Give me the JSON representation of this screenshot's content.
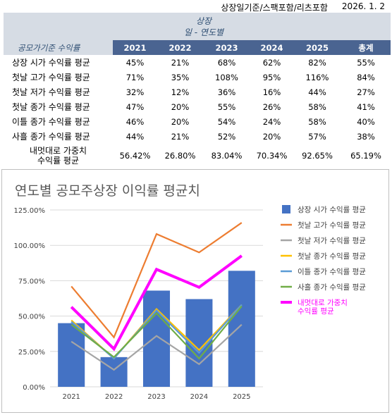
{
  "header": {
    "note": "상장일기준/스팩포함/리츠포함",
    "date": "2026. 1. 2"
  },
  "table": {
    "basis_line1": "상장",
    "basis_line2": "일 - 연도별",
    "row_header": "공모가기준 수익률",
    "columns": [
      "2021",
      "2022",
      "2023",
      "2024",
      "2025",
      "총계"
    ],
    "rows": [
      {
        "label": "상장 시가 수익률 평균",
        "values": [
          "45%",
          "21%",
          "68%",
          "62%",
          "82%",
          "55%"
        ]
      },
      {
        "label": "첫날 고가 수익률 평균",
        "values": [
          "71%",
          "35%",
          "108%",
          "95%",
          "116%",
          "84%"
        ]
      },
      {
        "label": "첫날 저가 수익률 평균",
        "values": [
          "32%",
          "12%",
          "36%",
          "16%",
          "44%",
          "27%"
        ]
      },
      {
        "label": "첫날 종가 수익률 평균",
        "values": [
          "47%",
          "20%",
          "55%",
          "26%",
          "58%",
          "41%"
        ]
      },
      {
        "label": "이틀 종가 수익률 평균",
        "values": [
          "46%",
          "20%",
          "54%",
          "24%",
          "58%",
          "40%"
        ]
      },
      {
        "label": "사흘 종가 수익률 평균",
        "values": [
          "44%",
          "21%",
          "52%",
          "20%",
          "57%",
          "38%"
        ]
      }
    ],
    "last_row": {
      "label_line1": "내멋대로 가중치",
      "label_line2": "수익률 평균",
      "values": [
        "56.42%",
        "26.80%",
        "83.04%",
        "70.34%",
        "92.65%",
        "65.19%"
      ]
    }
  },
  "chart_data": {
    "type": "bar",
    "title": "연도별 공모주상장 이익률 평균치",
    "categories": [
      "2021",
      "2022",
      "2023",
      "2024",
      "2025"
    ],
    "ylim": [
      0,
      125
    ],
    "yticks": [
      "0.00%",
      "25.00%",
      "50.00%",
      "75.00%",
      "100.00%",
      "125.00%"
    ],
    "grid": true,
    "legend_position": "right",
    "series": [
      {
        "name": "상장 시가 수익률 평균",
        "kind": "bar",
        "color": "#4472c4",
        "values": [
          45,
          21,
          68,
          62,
          82
        ]
      },
      {
        "name": "첫날 고가 수익률 평균",
        "kind": "line",
        "color": "#ed7d31",
        "values": [
          71,
          35,
          108,
          95,
          116
        ]
      },
      {
        "name": "첫날 저가 수익률 평균",
        "kind": "line",
        "color": "#a5a5a5",
        "values": [
          32,
          12,
          36,
          16,
          44
        ]
      },
      {
        "name": "첫날 종가 수익률 평균",
        "kind": "line",
        "color": "#ffc000",
        "values": [
          47,
          20,
          55,
          26,
          58
        ]
      },
      {
        "name": "이틀 종가 수익률 평균",
        "kind": "line",
        "color": "#5b9bd5",
        "values": [
          46,
          20,
          54,
          24,
          58
        ]
      },
      {
        "name": "사흘 종가 수익률 평균",
        "kind": "line",
        "color": "#70ad47",
        "values": [
          44,
          21,
          52,
          20,
          57
        ]
      },
      {
        "name": "내멋대로 가중치 수익률 평균",
        "legend_lines": [
          "내멋대로 가중치",
          "수익률 평균"
        ],
        "kind": "line",
        "color": "#ff00ff",
        "values": [
          56.42,
          26.8,
          83.04,
          70.34,
          92.65
        ]
      }
    ]
  }
}
